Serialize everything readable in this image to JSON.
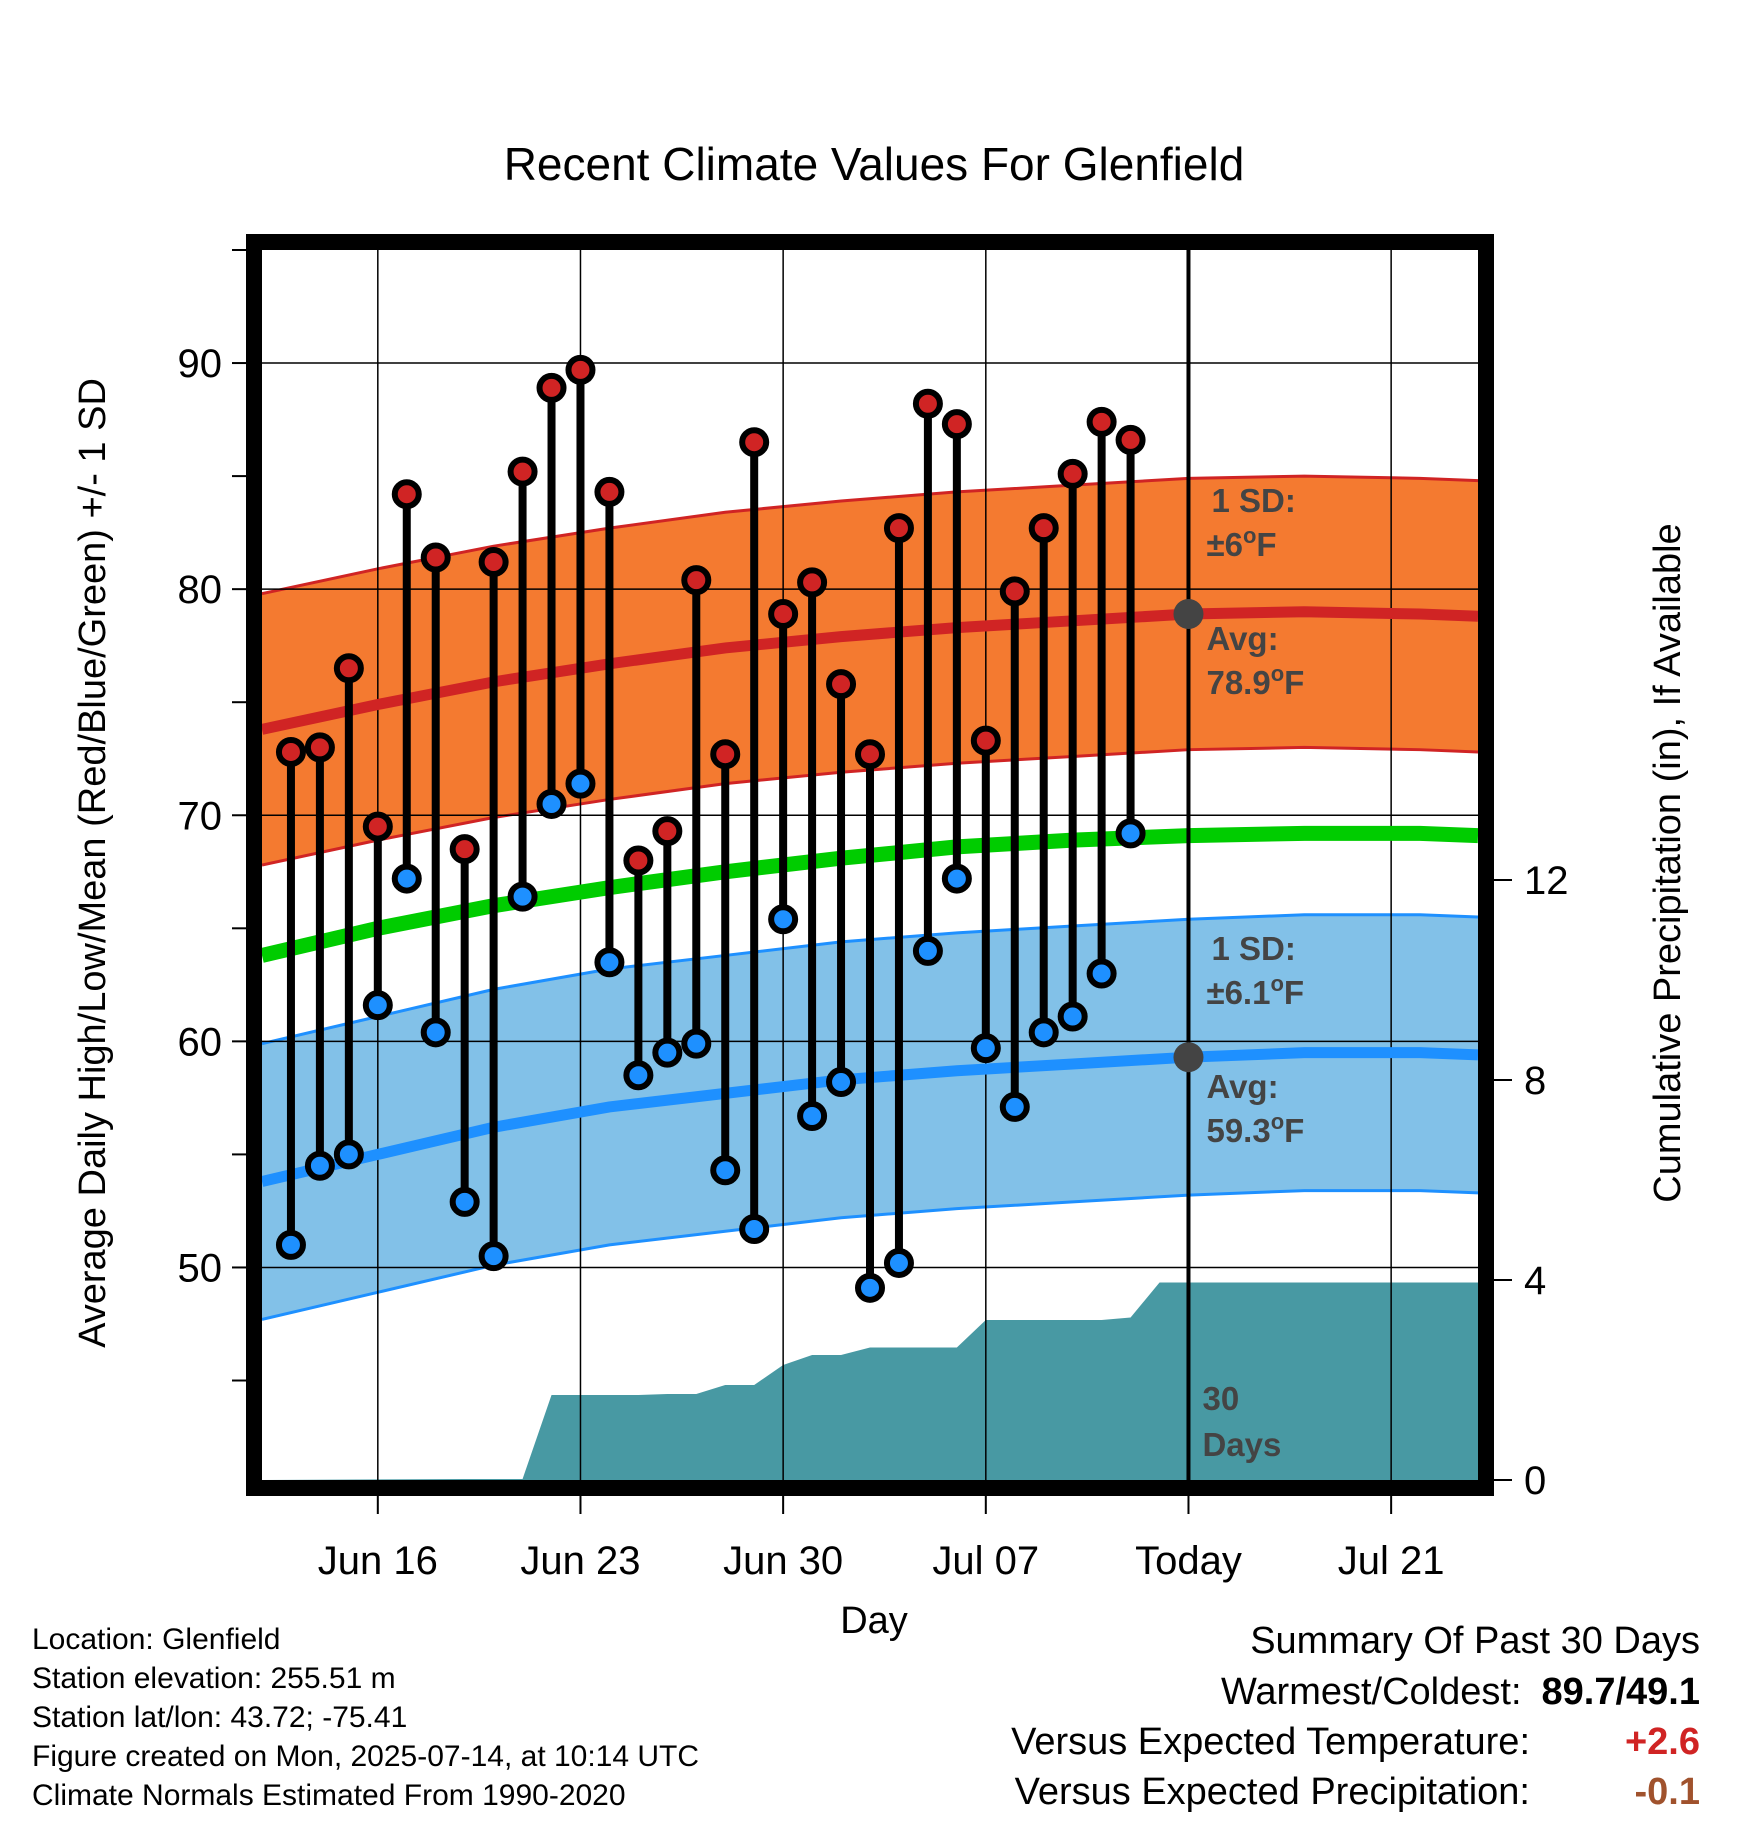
{
  "chart_data": {
    "type": "line",
    "title": "Recent Climate Values For Glenfield",
    "xlabel": "Day",
    "ylabel": "Average Daily High/Low/Mean (Red/Blue/Green) +/- 1 SD",
    "y2label": "Cumulative Precipitation (in), If Available",
    "ylim": [
      40.6,
      95
    ],
    "y2lim": [
      0,
      24.6
    ],
    "xlim": [
      "2025-06-12",
      "2025-07-24"
    ],
    "x_ticks": [
      {
        "date": "2025-06-16",
        "label": "Jun 16"
      },
      {
        "date": "2025-06-23",
        "label": "Jun 23"
      },
      {
        "date": "2025-06-30",
        "label": "Jun 30"
      },
      {
        "date": "2025-07-07",
        "label": "Jul 07"
      },
      {
        "date": "2025-07-14",
        "label": "Today"
      },
      {
        "date": "2025-07-21",
        "label": "Jul 21"
      }
    ],
    "y_ticks": [
      50,
      60,
      70,
      80,
      90
    ],
    "y2_ticks": [
      0,
      4,
      8,
      12
    ],
    "grid": true,
    "today": "2025-07-14",
    "today_label": "30 Days",
    "daily": {
      "dates": [
        "2025-06-13",
        "2025-06-14",
        "2025-06-15",
        "2025-06-16",
        "2025-06-17",
        "2025-06-18",
        "2025-06-19",
        "2025-06-20",
        "2025-06-21",
        "2025-06-22",
        "2025-06-23",
        "2025-06-24",
        "2025-06-25",
        "2025-06-26",
        "2025-06-27",
        "2025-06-28",
        "2025-06-29",
        "2025-06-30",
        "2025-07-01",
        "2025-07-02",
        "2025-07-03",
        "2025-07-04",
        "2025-07-05",
        "2025-07-06",
        "2025-07-07",
        "2025-07-08",
        "2025-07-09",
        "2025-07-10",
        "2025-07-11",
        "2025-07-12",
        "2025-07-13"
      ],
      "high": [
        72.8,
        73.0,
        76.5,
        69.5,
        84.2,
        81.4,
        68.5,
        81.2,
        85.2,
        88.9,
        89.7,
        84.3,
        68.0,
        69.3,
        80.4,
        72.7,
        86.5,
        78.9,
        80.3,
        75.8,
        72.7,
        82.7,
        88.2,
        87.3,
        73.3,
        79.9,
        82.7,
        85.1,
        87.4,
        86.6,
        null
      ],
      "low": [
        51.0,
        54.5,
        55.0,
        61.6,
        67.2,
        60.4,
        52.9,
        50.5,
        66.4,
        70.5,
        71.4,
        63.5,
        58.5,
        59.5,
        59.9,
        54.3,
        51.7,
        65.4,
        56.7,
        58.2,
        49.1,
        50.2,
        64.0,
        67.2,
        59.7,
        57.1,
        60.4,
        61.1,
        63.0,
        69.2,
        null
      ]
    },
    "normals": {
      "dates": [
        "2025-06-12",
        "2025-06-16",
        "2025-06-20",
        "2025-06-24",
        "2025-06-28",
        "2025-07-02",
        "2025-07-06",
        "2025-07-10",
        "2025-07-14",
        "2025-07-18",
        "2025-07-22",
        "2025-07-24"
      ],
      "high_avg": [
        73.8,
        74.9,
        75.9,
        76.7,
        77.4,
        77.9,
        78.3,
        78.6,
        78.9,
        79.0,
        78.9,
        78.8
      ],
      "low_avg": [
        53.8,
        55.0,
        56.2,
        57.1,
        57.7,
        58.3,
        58.7,
        59.0,
        59.3,
        59.5,
        59.5,
        59.4
      ],
      "mean_avg": [
        63.8,
        65.0,
        66.0,
        66.8,
        67.5,
        68.1,
        68.6,
        68.9,
        69.1,
        69.2,
        69.2,
        69.1
      ],
      "high_sd": 6,
      "low_sd": 6.1
    },
    "precip_cumulative": {
      "dates": [
        "2025-06-12",
        "2025-06-19",
        "2025-06-20",
        "2025-06-21",
        "2025-06-22",
        "2025-06-23",
        "2025-06-24",
        "2025-06-25",
        "2025-06-26",
        "2025-06-27",
        "2025-06-28",
        "2025-06-29",
        "2025-06-30",
        "2025-07-01",
        "2025-07-02",
        "2025-07-03",
        "2025-07-04",
        "2025-07-05",
        "2025-07-06",
        "2025-07-07",
        "2025-07-08",
        "2025-07-09",
        "2025-07-10",
        "2025-07-11",
        "2025-07-12",
        "2025-07-13",
        "2025-07-14",
        "2025-07-24"
      ],
      "values": [
        0,
        0.02,
        0.02,
        0.02,
        1.7,
        1.7,
        1.7,
        1.7,
        1.72,
        1.72,
        1.9,
        1.9,
        2.3,
        2.5,
        2.5,
        2.65,
        2.65,
        2.65,
        2.65,
        3.2,
        3.2,
        3.2,
        3.2,
        3.2,
        3.25,
        3.95,
        3.95,
        3.95
      ]
    },
    "annotations": {
      "high_sd_label": "1 SD:",
      "high_sd_value": "±6°F",
      "high_avg_label": "Avg:",
      "high_avg_value": "78.9°F",
      "low_sd_label": "1 SD:",
      "low_sd_value": "±6.1°F",
      "low_avg_label": "Avg:",
      "low_avg_value": "59.3°F",
      "days_label_1": "30",
      "days_label_2": "Days"
    },
    "colors": {
      "high_band": "#f47a30",
      "high_line": "#d02424",
      "low_band": "#82c1e8",
      "low_line": "#1e90ff",
      "mean_line": "#00cc00",
      "precip": "#4899a3",
      "high_marker": "#d02424",
      "low_marker": "#1e90ff",
      "today_marker": "#444444"
    }
  },
  "info": {
    "location": "Location: Glenfield",
    "elevation": "Station elevation: 255.51 m",
    "latlon": "Station lat/lon: 43.72; -75.41",
    "created": "Figure created on Mon, 2025-07-14, at 10:14 UTC",
    "normals": "Climate Normals Estimated From 1990-2020"
  },
  "summary": {
    "heading": "Summary Of Past 30 Days",
    "warmest_label": "Warmest/Coldest:",
    "warmest_value": "89.7/49.1",
    "temp_label": "Versus Expected Temperature:",
    "temp_value": "+2.6",
    "temp_color": "#d02424",
    "precip_label": "Versus Expected Precipitation:",
    "precip_value": "-0.1",
    "precip_color": "#a0522d"
  }
}
